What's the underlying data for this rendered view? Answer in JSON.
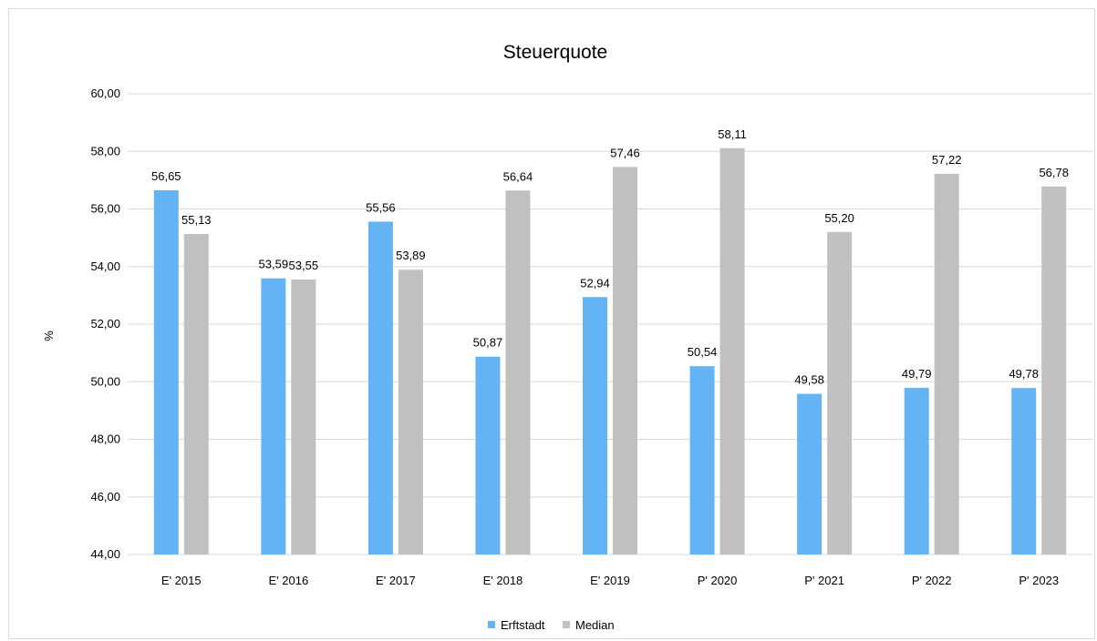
{
  "chart_data": {
    "type": "bar",
    "title": "Steuerquote",
    "xlabel": "",
    "ylabel": "%",
    "categories": [
      "E' 2015",
      "E' 2016",
      "E' 2017",
      "E' 2018",
      "E' 2019",
      "P' 2020",
      "P' 2021",
      "P' 2022",
      "P' 2023"
    ],
    "series": [
      {
        "name": "Erftstadt",
        "color": "#63b3f5",
        "values": [
          56.65,
          53.59,
          55.56,
          50.87,
          52.94,
          50.54,
          49.58,
          49.79,
          49.78
        ],
        "labels": [
          "56,65",
          "53,59",
          "55,56",
          "50,87",
          "52,94",
          "50,54",
          "49,58",
          "49,79",
          "49,78"
        ]
      },
      {
        "name": "Median",
        "color": "#c0c0c0",
        "values": [
          55.13,
          53.55,
          53.89,
          56.64,
          57.46,
          58.11,
          55.2,
          57.22,
          56.78
        ],
        "labels": [
          "55,13",
          "53,55",
          "53,89",
          "56,64",
          "57,46",
          "58,11",
          "55,20",
          "57,22",
          "56,78"
        ]
      }
    ],
    "ylim": [
      44,
      60
    ],
    "yticks": [
      44,
      46,
      48,
      50,
      52,
      54,
      56,
      58,
      60
    ],
    "ytick_labels": [
      "44,00",
      "46,00",
      "48,00",
      "50,00",
      "52,00",
      "54,00",
      "56,00",
      "58,00",
      "60,00"
    ],
    "grid": true,
    "legend_position": "bottom-center"
  }
}
